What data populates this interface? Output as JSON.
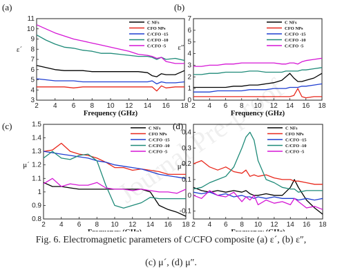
{
  "watermark": "Journal Pre-proof",
  "caption": {
    "line1": "Fig. 6. Electromagnetic parameters of C/CFO composite (a) ε´, (b) ε″,",
    "line2": "(c) μ´, (d) μ″."
  },
  "colors": {
    "C NFs": "#000000",
    "CFO NPs": "#e8271b",
    "C/CFO -15": "#1f3ed1",
    "C/CFO -10": "#1e8a78",
    "C/CFO -5": "#d515d5"
  },
  "chart_data": [
    {
      "panel": "(a)",
      "type": "line",
      "xlabel": "Frequency (GHz)",
      "ylabel": "ε´",
      "xlim": [
        2,
        18
      ],
      "ylim": [
        3,
        11
      ],
      "xticks": [
        2,
        4,
        6,
        8,
        10,
        12,
        14,
        16,
        18
      ],
      "yticks": [
        3,
        4,
        5,
        6,
        7,
        8,
        9,
        10,
        11
      ],
      "legend_position": "top-right",
      "x": [
        2,
        3,
        4,
        5,
        6,
        7,
        8,
        9,
        10,
        11,
        12,
        13,
        14,
        14.5,
        15,
        15.5,
        16,
        17,
        18
      ],
      "series": [
        {
          "name": "C NFs",
          "values": [
            6.4,
            6.2,
            6.0,
            5.9,
            5.9,
            5.9,
            5.8,
            5.8,
            5.8,
            5.8,
            5.8,
            5.8,
            5.7,
            5.4,
            5.3,
            5.6,
            5.5,
            5.5,
            5.9
          ]
        },
        {
          "name": "CFO NPs",
          "values": [
            4.3,
            4.3,
            4.3,
            4.3,
            4.2,
            4.3,
            4.3,
            4.3,
            4.3,
            4.3,
            4.3,
            4.3,
            4.3,
            4.3,
            3.9,
            4.4,
            4.2,
            4.3,
            4.3
          ]
        },
        {
          "name": "C/CFO -15",
          "values": [
            5.1,
            5.0,
            4.9,
            4.9,
            4.9,
            4.8,
            4.8,
            4.8,
            4.8,
            4.8,
            4.8,
            4.8,
            4.8,
            4.9,
            4.6,
            4.8,
            4.7,
            4.7,
            4.8
          ]
        },
        {
          "name": "C/CFO -10",
          "values": [
            9.4,
            8.9,
            8.5,
            8.2,
            8.1,
            7.9,
            7.8,
            7.6,
            7.6,
            7.5,
            7.4,
            7.3,
            7.3,
            7.2,
            7.0,
            7.2,
            7.0,
            7.1,
            6.9
          ]
        },
        {
          "name": "C/CFO -5",
          "values": [
            10.4,
            10.0,
            9.6,
            9.3,
            9.0,
            8.8,
            8.6,
            8.4,
            8.2,
            8.0,
            7.8,
            7.5,
            7.4,
            7.3,
            7.1,
            7.2,
            6.8,
            6.6,
            6.6
          ]
        }
      ]
    },
    {
      "panel": "(b)",
      "type": "line",
      "xlabel": "Frequency (GHz)",
      "ylabel": "ε″",
      "xlim": [
        2,
        18
      ],
      "ylim": [
        0,
        7
      ],
      "xticks": [
        2,
        4,
        6,
        8,
        10,
        12,
        14,
        16,
        18
      ],
      "yticks": [
        0,
        1,
        2,
        3,
        4,
        5,
        6,
        7
      ],
      "legend_position": "top-right",
      "x": [
        2,
        3,
        4,
        5,
        6,
        7,
        8,
        9,
        10,
        11,
        12,
        13,
        13.5,
        14,
        14.5,
        15,
        15.5,
        16,
        17,
        18
      ],
      "series": [
        {
          "name": "C NFs",
          "values": [
            1.1,
            1.1,
            1.1,
            1.1,
            1.1,
            1.2,
            1.2,
            1.3,
            1.3,
            1.4,
            1.5,
            1.7,
            2.0,
            2.3,
            1.9,
            1.6,
            1.6,
            1.7,
            1.9,
            2.3
          ]
        },
        {
          "name": "CFO NPs",
          "values": [
            0.3,
            0.3,
            0.3,
            0.3,
            0.3,
            0.3,
            0.3,
            0.3,
            0.3,
            0.3,
            0.3,
            0.3,
            0.3,
            0.3,
            0.4,
            1.0,
            0.3,
            0.2,
            0.3,
            0.3
          ]
        },
        {
          "name": "C/CFO -15",
          "values": [
            0.7,
            0.7,
            0.7,
            0.8,
            0.8,
            0.8,
            0.8,
            0.9,
            0.9,
            0.9,
            1.0,
            1.0,
            1.0,
            1.1,
            1.1,
            1.1,
            1.2,
            1.2,
            1.3,
            1.4
          ]
        },
        {
          "name": "C/CFO -10",
          "values": [
            2.2,
            2.2,
            2.3,
            2.3,
            2.4,
            2.4,
            2.4,
            2.5,
            2.5,
            2.4,
            2.4,
            2.4,
            2.5,
            2.5,
            2.5,
            2.5,
            2.6,
            2.6,
            2.7,
            2.8
          ]
        },
        {
          "name": "C/CFO -5",
          "values": [
            2.9,
            2.9,
            3.0,
            3.0,
            3.1,
            3.1,
            3.2,
            3.2,
            3.2,
            3.2,
            3.2,
            3.1,
            3.1,
            3.2,
            3.2,
            3.1,
            3.3,
            3.4,
            3.5,
            3.6
          ]
        }
      ]
    },
    {
      "panel": "(c)",
      "type": "line",
      "xlabel": "Frequency (GHz)",
      "ylabel": "μ´",
      "xlim": [
        2,
        18
      ],
      "ylim": [
        0.8,
        1.5
      ],
      "xticks": [
        2,
        4,
        6,
        8,
        10,
        12,
        14,
        16,
        18
      ],
      "yticks": [
        0.8,
        0.9,
        1.0,
        1.1,
        1.2,
        1.3,
        1.4,
        1.5
      ],
      "legend_position": "top-right",
      "x": [
        2,
        3,
        4,
        5,
        6,
        7,
        8,
        9,
        10,
        11,
        12,
        13,
        14,
        15,
        16,
        17,
        18
      ],
      "series": [
        {
          "name": "C NFs",
          "values": [
            1.07,
            1.04,
            1.04,
            1.03,
            1.02,
            1.02,
            1.02,
            1.02,
            1.02,
            1.02,
            1.02,
            1.02,
            1.0,
            0.9,
            0.87,
            0.85,
            0.82
          ]
        },
        {
          "name": "CFO NPs",
          "values": [
            1.3,
            1.31,
            1.36,
            1.3,
            1.28,
            1.27,
            1.25,
            1.22,
            1.18,
            1.18,
            1.16,
            1.17,
            1.16,
            1.15,
            1.13,
            1.13,
            1.13
          ]
        },
        {
          "name": "C/CFO -15",
          "values": [
            1.3,
            1.29,
            1.28,
            1.27,
            1.26,
            1.25,
            1.23,
            1.22,
            1.2,
            1.19,
            1.18,
            1.17,
            1.15,
            1.13,
            1.12,
            1.11,
            1.1
          ]
        },
        {
          "name": "C/CFO -10",
          "values": [
            1.25,
            1.3,
            1.25,
            1.24,
            1.27,
            1.28,
            1.23,
            1.05,
            0.9,
            0.88,
            0.9,
            0.92,
            0.96,
            0.95,
            0.95,
            0.95,
            0.95
          ]
        },
        {
          "name": "C/CFO -5",
          "values": [
            1.06,
            1.1,
            1.04,
            1.06,
            1.05,
            1.05,
            1.07,
            1.03,
            1.02,
            1.02,
            1.01,
            1.02,
            1.01,
            1.0,
            1.0,
            0.99,
            1.02
          ]
        }
      ]
    },
    {
      "panel": "(d)",
      "type": "line",
      "xlabel": "Frequency (GHz)",
      "ylabel": "μ″",
      "xlim": [
        2,
        18
      ],
      "ylim": [
        -0.15,
        0.45
      ],
      "xticks": [
        2,
        4,
        6,
        8,
        10,
        12,
        14,
        16,
        18
      ],
      "yticks": [
        -0.1,
        0.0,
        0.1,
        0.2,
        0.3,
        0.4
      ],
      "legend_position": "top-right",
      "x": [
        2,
        3,
        4,
        5,
        6,
        7,
        8,
        8.5,
        9,
        9.5,
        10,
        11,
        12,
        13,
        14,
        14.5,
        15,
        16,
        17,
        18
      ],
      "series": [
        {
          "name": "C NFs",
          "values": [
            0.05,
            0.03,
            0.02,
            0.03,
            0.02,
            0.03,
            0.02,
            0.03,
            0.01,
            0.0,
            0.0,
            0.01,
            0.0,
            0.0,
            0.05,
            0.1,
            0.05,
            -0.03,
            -0.08,
            -0.12
          ]
        },
        {
          "name": "CFO NPs",
          "values": [
            0.2,
            0.22,
            0.18,
            0.16,
            0.18,
            0.15,
            0.14,
            0.16,
            0.12,
            0.13,
            0.12,
            0.13,
            0.11,
            0.1,
            0.1,
            0.09,
            0.09,
            0.08,
            0.07,
            0.07
          ]
        },
        {
          "name": "C/CFO -15",
          "values": [
            0.02,
            0.01,
            0.02,
            0.0,
            0.01,
            -0.01,
            0.0,
            -0.01,
            -0.01,
            -0.02,
            -0.01,
            -0.02,
            -0.01,
            -0.02,
            -0.02,
            -0.02,
            -0.03,
            -0.02,
            -0.03,
            -0.02
          ]
        },
        {
          "name": "C/CFO -10",
          "values": [
            0.04,
            0.05,
            0.08,
            0.1,
            0.12,
            0.18,
            0.3,
            0.37,
            0.4,
            0.35,
            0.22,
            0.1,
            0.08,
            0.05,
            0.04,
            0.04,
            0.02,
            0.03,
            0.03,
            0.03
          ]
        },
        {
          "name": "C/CFO -5",
          "values": [
            0.0,
            -0.02,
            0.03,
            0.0,
            -0.01,
            0.02,
            -0.04,
            -0.01,
            -0.03,
            0.0,
            -0.06,
            -0.03,
            -0.05,
            -0.04,
            -0.06,
            -0.02,
            -0.04,
            -0.08,
            -0.07,
            -0.09
          ]
        }
      ]
    }
  ]
}
